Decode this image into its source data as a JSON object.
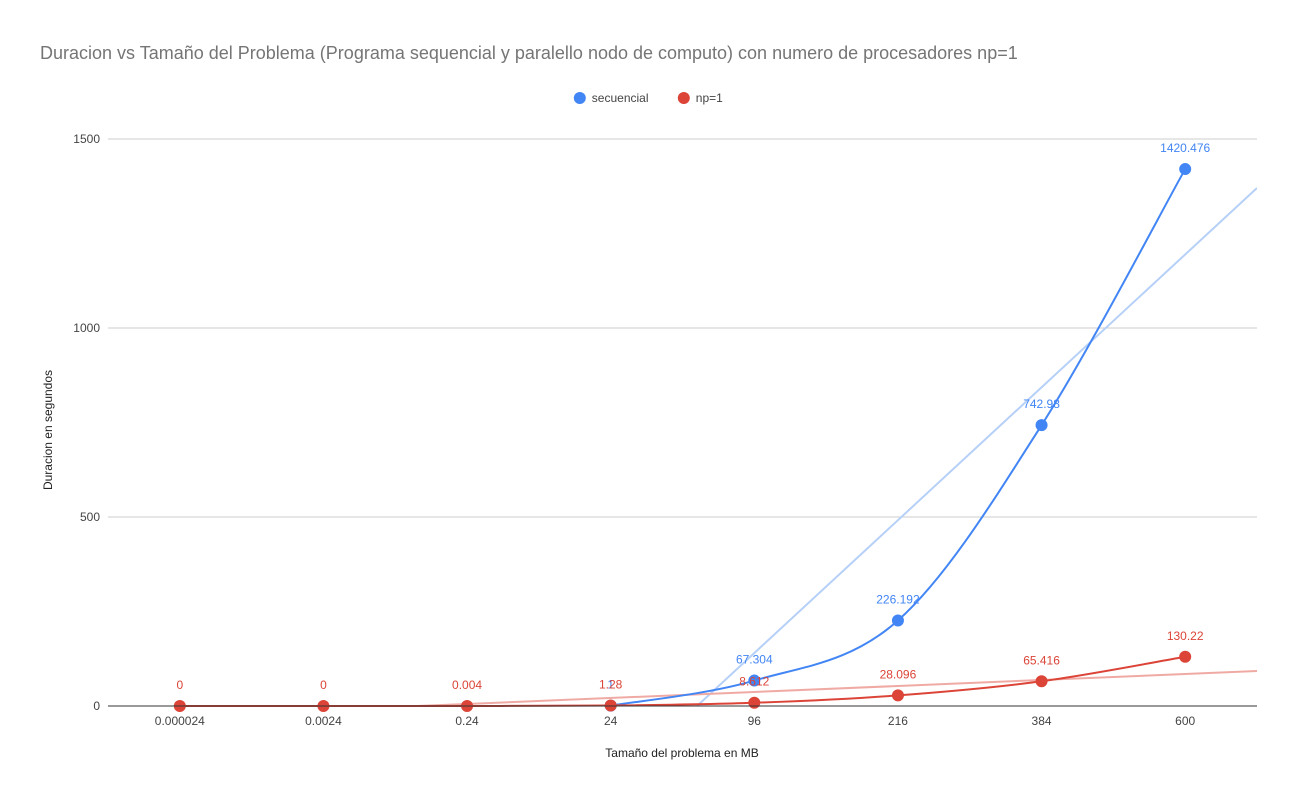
{
  "chart_data": {
    "type": "line",
    "title": "Duracion vs Tamaño del Problema (Programa sequencial y paralello nodo de computo) con numero de procesadores np=1",
    "xlabel": "Tamaño del problema en MB",
    "ylabel": "Duracion en segundos",
    "categories": [
      "0.000024",
      "0.0024",
      "0.24",
      "24",
      "96",
      "216",
      "384",
      "600"
    ],
    "ylim": [
      0,
      1500
    ],
    "yticks": [
      "0",
      "500",
      "1000",
      "1500"
    ],
    "grid": true,
    "legend_position": "top",
    "series": [
      {
        "name": "secuencial",
        "color": "#4285f4",
        "trend_color": "#b6d0f7",
        "values": [
          null,
          null,
          null,
          1,
          67.304,
          226.192,
          742.98,
          1420.476
        ],
        "labels": [
          "",
          "",
          "",
          "1",
          "67.304",
          "226.192",
          "742.98",
          "1420.476"
        ]
      },
      {
        "name": "np=1",
        "color": "#db4437",
        "trend_color": "#f0aaa4",
        "values": [
          0,
          0,
          0.004,
          1.28,
          8.612,
          28.096,
          65.416,
          130.22
        ],
        "labels": [
          "0",
          "0",
          "0.004",
          "1.28",
          "8.612",
          "28.096",
          "65.416",
          "130.22"
        ]
      }
    ]
  }
}
